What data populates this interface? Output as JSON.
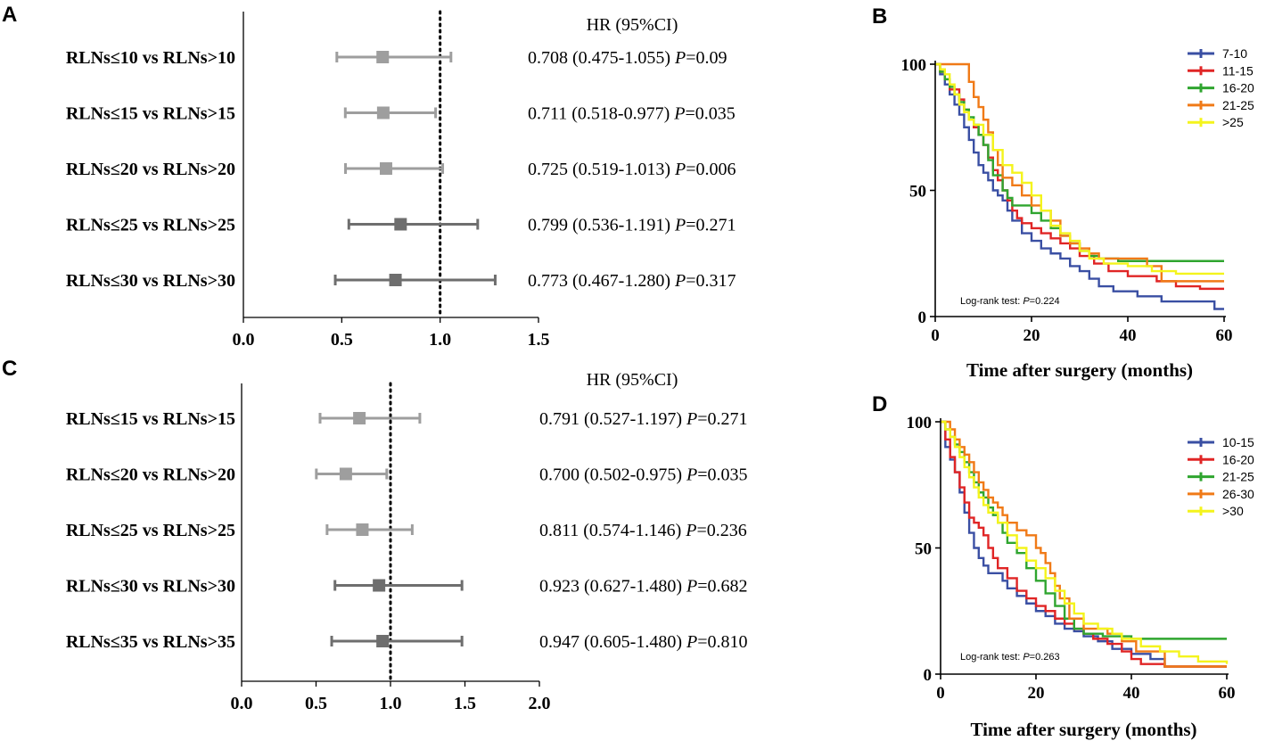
{
  "chart_data": [
    {
      "panel": "A",
      "type": "forest",
      "header": "HR (95%CI)",
      "xlim": [
        0,
        1.5
      ],
      "xticks": [
        "0.0",
        "0.5",
        "1.0",
        "1.5"
      ],
      "reference": 1.0,
      "rows": [
        {
          "label": "RLNs≤10 vs RLNs>10",
          "hr": 0.708,
          "lo": 0.475,
          "hi": 1.055,
          "ci_text": "0.708 (0.475-1.055)",
          "p": "=0.09",
          "color": "#9e9e9e"
        },
        {
          "label": "RLNs≤15 vs RLNs>15",
          "hr": 0.711,
          "lo": 0.518,
          "hi": 0.977,
          "ci_text": "0.711 (0.518-0.977)",
          "p": "=0.035",
          "color": "#9e9e9e"
        },
        {
          "label": "RLNs≤20 vs RLNs>20",
          "hr": 0.725,
          "lo": 0.519,
          "hi": 1.013,
          "ci_text": "0.725 (0.519-1.013)",
          "p": "=0.006",
          "color": "#9e9e9e"
        },
        {
          "label": "RLNs≤25 vs RLNs>25",
          "hr": 0.799,
          "lo": 0.536,
          "hi": 1.191,
          "ci_text": "0.799 (0.536-1.191)",
          "p": "=0.271",
          "color": "#6e6e6e"
        },
        {
          "label": "RLNs≤30 vs RLNs>30",
          "hr": 0.773,
          "lo": 0.467,
          "hi": 1.28,
          "ci_text": "0.773 (0.467-1.280)",
          "p": "=0.317",
          "color": "#6e6e6e"
        }
      ]
    },
    {
      "panel": "B",
      "type": "line",
      "subtype": "kaplan-meier",
      "xlabel": "Time after surgery (months)",
      "xlim": [
        0,
        60
      ],
      "xticks": [
        0,
        20,
        40,
        60
      ],
      "ylim": [
        0,
        100
      ],
      "yticks": [
        0,
        50,
        100
      ],
      "annotation_prefix": "Log-rank test: ",
      "annotation_p": "P",
      "annotation_value": "=0.224",
      "series": [
        {
          "name": "7-10",
          "color": "#3a4fa3",
          "x": [
            0,
            1,
            2,
            3,
            4,
            5,
            6,
            7,
            8,
            9,
            10,
            11,
            12,
            13,
            14,
            15,
            16,
            18,
            20,
            22,
            24,
            26,
            28,
            30,
            32,
            34,
            37,
            42,
            47,
            52,
            56,
            58,
            60
          ],
          "y": [
            100,
            96,
            92,
            88,
            84,
            80,
            75,
            70,
            65,
            60,
            57,
            54,
            50,
            48,
            46,
            42,
            38,
            33,
            30,
            27,
            25,
            23,
            20,
            18,
            15,
            12,
            10,
            8,
            6,
            6,
            6,
            3,
            3
          ]
        },
        {
          "name": "11-15",
          "color": "#e02525",
          "x": [
            0,
            1,
            2,
            3,
            5,
            6,
            7,
            8,
            9,
            10,
            11,
            12,
            13,
            14,
            15,
            16,
            17,
            18,
            20,
            22,
            24,
            26,
            28,
            30,
            33,
            36,
            40,
            46,
            50,
            55,
            60
          ],
          "y": [
            100,
            97,
            94,
            90,
            86,
            82,
            78,
            75,
            72,
            68,
            63,
            58,
            54,
            50,
            46,
            42,
            39,
            37,
            35,
            33,
            31,
            29,
            27,
            24,
            21,
            18,
            16,
            14,
            12,
            11,
            11
          ]
        },
        {
          "name": "16-20",
          "color": "#2fa52f",
          "x": [
            0,
            1,
            2,
            3,
            4,
            5,
            6,
            7,
            8,
            9,
            10,
            11,
            12,
            14,
            15,
            16,
            18,
            20,
            22,
            24,
            26,
            28,
            30,
            32,
            34,
            38,
            45,
            60
          ],
          "y": [
            100,
            97,
            94,
            91,
            88,
            85,
            82,
            79,
            76,
            72,
            68,
            62,
            56,
            50,
            47,
            44,
            44,
            41,
            38,
            35,
            32,
            29,
            26,
            24,
            23,
            22,
            22,
            22
          ]
        },
        {
          "name": "21-25",
          "color": "#f07a17",
          "x": [
            0,
            5,
            7,
            8,
            9,
            10,
            11,
            12,
            13,
            14,
            16,
            18,
            20,
            22,
            24,
            26,
            28,
            30,
            32,
            34,
            38,
            44,
            47,
            55,
            60
          ],
          "y": [
            100,
            100,
            93,
            87,
            83,
            78,
            73,
            66,
            60,
            55,
            52,
            48,
            44,
            42,
            38,
            32,
            29,
            27,
            25,
            23,
            23,
            20,
            14,
            14,
            14
          ]
        },
        {
          "name": ">25",
          "color": "#f4f41c",
          "x": [
            0,
            1,
            2,
            3,
            4,
            5,
            6,
            7,
            8,
            10,
            12,
            14,
            16,
            18,
            20,
            22,
            24,
            26,
            28,
            30,
            32,
            35,
            40,
            45,
            50,
            55,
            60
          ],
          "y": [
            100,
            98,
            96,
            92,
            88,
            84,
            81,
            78,
            76,
            72,
            66,
            60,
            57,
            53,
            48,
            42,
            36,
            33,
            30,
            26,
            23,
            21,
            20,
            18,
            17,
            17,
            17
          ]
        }
      ]
    },
    {
      "panel": "C",
      "type": "forest",
      "header": "HR (95%CI)",
      "xlim": [
        0,
        2.0
      ],
      "xticks": [
        "0.0",
        "0.5",
        "1.0",
        "1.5",
        "2.0"
      ],
      "reference": 1.0,
      "rows": [
        {
          "label": "RLNs≤15 vs RLNs>15",
          "hr": 0.791,
          "lo": 0.527,
          "hi": 1.197,
          "ci_text": "0.791 (0.527-1.197)",
          "p": "=0.271",
          "color": "#9e9e9e"
        },
        {
          "label": "RLNs≤20 vs RLNs>20",
          "hr": 0.7,
          "lo": 0.502,
          "hi": 0.975,
          "ci_text": "0.700 (0.502-0.975)",
          "p": "=0.035",
          "color": "#9e9e9e"
        },
        {
          "label": "RLNs≤25 vs RLNs>25",
          "hr": 0.811,
          "lo": 0.574,
          "hi": 1.146,
          "ci_text": "0.811 (0.574-1.146)",
          "p": "=0.236",
          "color": "#9e9e9e"
        },
        {
          "label": "RLNs≤30 vs RLNs>30",
          "hr": 0.923,
          "lo": 0.627,
          "hi": 1.48,
          "ci_text": "0.923 (0.627-1.480)",
          "p": "=0.682",
          "color": "#6e6e6e"
        },
        {
          "label": "RLNs≤35 vs RLNs>35",
          "hr": 0.947,
          "lo": 0.605,
          "hi": 1.48,
          "ci_text": "0.947 (0.605-1.480)",
          "p": "=0.810",
          "color": "#6e6e6e"
        }
      ]
    },
    {
      "panel": "D",
      "type": "line",
      "subtype": "kaplan-meier",
      "xlabel": "Time after surgery (months)",
      "xlim": [
        0,
        60
      ],
      "xticks": [
        0,
        20,
        40,
        60
      ],
      "ylim": [
        0,
        100
      ],
      "yticks": [
        0,
        50,
        100
      ],
      "annotation_prefix": "Log-rank test: ",
      "annotation_p": "P",
      "annotation_value": "=0.263",
      "series": [
        {
          "name": "10-15",
          "color": "#3a4fa3",
          "x": [
            0,
            1,
            2,
            3,
            4,
            5,
            6,
            7,
            8,
            9,
            10,
            12,
            13,
            14,
            15,
            16,
            18,
            20,
            22,
            24,
            26,
            28,
            30,
            33,
            36,
            40,
            44,
            47,
            52,
            60
          ],
          "y": [
            100,
            90,
            85,
            80,
            72,
            64,
            56,
            50,
            46,
            43,
            40,
            40,
            37,
            34,
            34,
            31,
            28,
            25,
            23,
            20,
            18,
            17,
            15,
            13,
            10,
            8,
            6,
            3,
            3,
            3
          ]
        },
        {
          "name": "16-20",
          "color": "#e02525",
          "x": [
            0,
            1,
            2,
            3,
            4,
            5,
            6,
            7,
            8,
            9,
            10,
            11,
            12,
            14,
            16,
            18,
            20,
            22,
            24,
            26,
            28,
            30,
            32,
            35,
            38,
            40,
            42,
            47,
            50,
            55,
            60
          ],
          "y": [
            100,
            93,
            86,
            80,
            74,
            68,
            62,
            60,
            58,
            55,
            50,
            46,
            42,
            38,
            33,
            30,
            27,
            25,
            22,
            20,
            18,
            16,
            14,
            12,
            9,
            6,
            4,
            3,
            3,
            3,
            3
          ]
        },
        {
          "name": "21-25",
          "color": "#2fa52f",
          "x": [
            0,
            1,
            2,
            3,
            4,
            5,
            6,
            7,
            8,
            9,
            10,
            11,
            12,
            13,
            14,
            16,
            18,
            20,
            22,
            24,
            26,
            28,
            30,
            34,
            40,
            46,
            60
          ],
          "y": [
            100,
            97,
            94,
            91,
            88,
            84,
            80,
            76,
            72,
            70,
            66,
            63,
            60,
            56,
            52,
            48,
            42,
            37,
            32,
            27,
            22,
            18,
            16,
            15,
            14,
            14,
            14
          ]
        },
        {
          "name": "26-30",
          "color": "#f07a17",
          "x": [
            0,
            1,
            2,
            3,
            4,
            5,
            6,
            7,
            8,
            9,
            10,
            11,
            12,
            13,
            14,
            16,
            18,
            20,
            21,
            22,
            23,
            24,
            25,
            27,
            30,
            35,
            38,
            41,
            47,
            55,
            60
          ],
          "y": [
            100,
            100,
            97,
            93,
            90,
            87,
            84,
            80,
            76,
            73,
            70,
            68,
            66,
            63,
            60,
            57,
            55,
            50,
            48,
            44,
            40,
            35,
            30,
            22,
            18,
            16,
            13,
            9,
            3,
            3,
            3
          ]
        },
        {
          "name": ">30",
          "color": "#f4f41c",
          "x": [
            0,
            1,
            2,
            3,
            4,
            5,
            6,
            7,
            8,
            9,
            10,
            12,
            14,
            16,
            18,
            20,
            22,
            24,
            26,
            28,
            30,
            33,
            36,
            38,
            42,
            46,
            50,
            54,
            60
          ],
          "y": [
            100,
            97,
            94,
            90,
            86,
            82,
            78,
            74,
            70,
            67,
            64,
            60,
            55,
            50,
            45,
            42,
            38,
            33,
            28,
            24,
            20,
            18,
            16,
            14,
            11,
            9,
            7,
            5,
            4
          ]
        }
      ]
    }
  ]
}
